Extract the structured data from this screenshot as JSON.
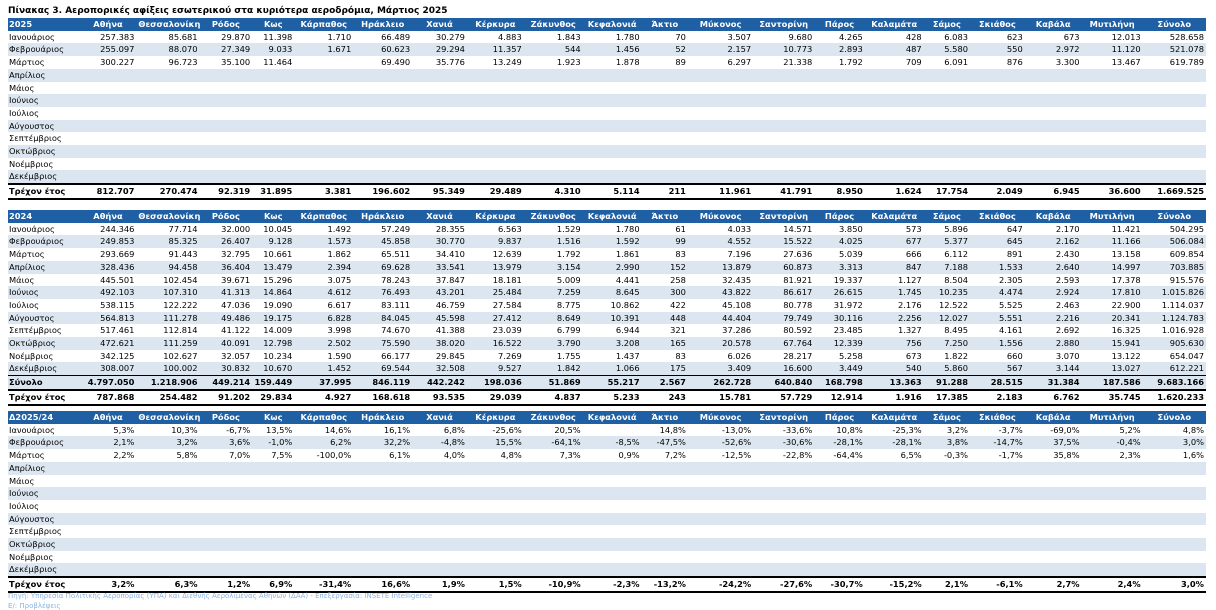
{
  "title": "Πίνακας 3. Αεροπορικές αφίξεις εσωτερικού στα κυριότερα αεροδρόμια, Μάρτιος 2025",
  "columns": [
    "Αθήνα",
    "Θεσσαλονίκη",
    "Ρόδος",
    "Κως",
    "Κάρπαθος",
    "Ηράκλειο",
    "Χανιά",
    "Κέρκυρα",
    "Ζάκυνθος",
    "Κεφαλονιά",
    "Άκτιο",
    "Μύκονος",
    "Σαντορίνη",
    "Πάρος",
    "Καλαμάτα",
    "Σάμος",
    "Σκιάθος",
    "Καβάλα",
    "Μυτιλήνη",
    "Σύνολο"
  ],
  "table2025": {
    "header": "2025",
    "rows": [
      {
        "label": "Ιανουάριος",
        "values": [
          "257.383",
          "85.681",
          "29.870",
          "11.398",
          "1.710",
          "66.489",
          "30.279",
          "4.883",
          "1.843",
          "1.780",
          "70",
          "3.507",
          "9.680",
          "4.265",
          "428",
          "6.083",
          "623",
          "673",
          "12.013",
          "528.658"
        ]
      },
      {
        "label": "Φεβρουάριος",
        "values": [
          "255.097",
          "88.070",
          "27.349",
          "9.033",
          "1.671",
          "60.623",
          "29.294",
          "11.357",
          "544",
          "1.456",
          "52",
          "2.157",
          "10.773",
          "2.893",
          "487",
          "5.580",
          "550",
          "2.972",
          "11.120",
          "521.078"
        ]
      },
      {
        "label": "Μάρτιος",
        "values": [
          "300.227",
          "96.723",
          "35.100",
          "11.464",
          "",
          "69.490",
          "35.776",
          "13.249",
          "1.923",
          "1.878",
          "89",
          "6.297",
          "21.338",
          "1.792",
          "709",
          "6.091",
          "876",
          "3.300",
          "13.467",
          "619.789"
        ]
      },
      {
        "label": "Απρίλιος",
        "values": []
      },
      {
        "label": "Μάιος",
        "values": []
      },
      {
        "label": "Ιούνιος",
        "values": []
      },
      {
        "label": "Ιούλιος",
        "values": []
      },
      {
        "label": "Αύγουστος",
        "values": []
      },
      {
        "label": "Σεπτέμβριος",
        "values": []
      },
      {
        "label": "Οκτώβριος",
        "values": []
      },
      {
        "label": "Νοέμβριος",
        "values": []
      },
      {
        "label": "Δεκέμβριος",
        "values": []
      }
    ],
    "total": {
      "label": "Τρέχον έτος",
      "values": [
        "812.707",
        "270.474",
        "92.319",
        "31.895",
        "3.381",
        "196.602",
        "95.349",
        "29.489",
        "4.310",
        "5.114",
        "211",
        "11.961",
        "41.791",
        "8.950",
        "1.624",
        "17.754",
        "2.049",
        "6.945",
        "36.600",
        "1.669.525"
      ]
    }
  },
  "table2024": {
    "header": "2024",
    "rows": [
      {
        "label": "Ιανουάριος",
        "values": [
          "244.346",
          "77.714",
          "32.000",
          "10.045",
          "1.492",
          "57.249",
          "28.355",
          "6.563",
          "1.529",
          "1.780",
          "61",
          "4.033",
          "14.571",
          "3.850",
          "573",
          "5.896",
          "647",
          "2.170",
          "11.421",
          "504.295"
        ]
      },
      {
        "label": "Φεβρουάριος",
        "values": [
          "249.853",
          "85.325",
          "26.407",
          "9.128",
          "1.573",
          "45.858",
          "30.770",
          "9.837",
          "1.516",
          "1.592",
          "99",
          "4.552",
          "15.522",
          "4.025",
          "677",
          "5.377",
          "645",
          "2.162",
          "11.166",
          "506.084"
        ]
      },
      {
        "label": "Μάρτιος",
        "values": [
          "293.669",
          "91.443",
          "32.795",
          "10.661",
          "1.862",
          "65.511",
          "34.410",
          "12.639",
          "1.792",
          "1.861",
          "83",
          "7.196",
          "27.636",
          "5.039",
          "666",
          "6.112",
          "891",
          "2.430",
          "13.158",
          "609.854"
        ]
      },
      {
        "label": "Απρίλιος",
        "values": [
          "328.436",
          "94.458",
          "36.404",
          "13.479",
          "2.394",
          "69.628",
          "33.541",
          "13.979",
          "3.154",
          "2.990",
          "152",
          "13.879",
          "60.873",
          "3.313",
          "847",
          "7.188",
          "1.533",
          "2.640",
          "14.997",
          "703.885"
        ]
      },
      {
        "label": "Μάιος",
        "values": [
          "445.501",
          "102.454",
          "39.671",
          "15.296",
          "3.075",
          "78.243",
          "37.847",
          "18.181",
          "5.009",
          "4.441",
          "258",
          "32.435",
          "81.921",
          "19.337",
          "1.127",
          "8.504",
          "2.305",
          "2.593",
          "17.378",
          "915.576"
        ]
      },
      {
        "label": "Ιούνιος",
        "values": [
          "492.103",
          "107.310",
          "41.313",
          "14.864",
          "4.612",
          "76.493",
          "43.201",
          "25.484",
          "7.259",
          "8.645",
          "300",
          "43.822",
          "86.617",
          "26.615",
          "1.745",
          "10.235",
          "4.474",
          "2.924",
          "17.810",
          "1.015.826"
        ]
      },
      {
        "label": "Ιούλιος",
        "values": [
          "538.115",
          "122.222",
          "47.036",
          "19.090",
          "6.617",
          "83.111",
          "46.759",
          "27.584",
          "8.775",
          "10.862",
          "422",
          "45.108",
          "80.778",
          "31.972",
          "2.176",
          "12.522",
          "5.525",
          "2.463",
          "22.900",
          "1.114.037"
        ]
      },
      {
        "label": "Αύγουστος",
        "values": [
          "564.813",
          "111.278",
          "49.486",
          "19.175",
          "6.828",
          "84.045",
          "45.598",
          "27.412",
          "8.649",
          "10.391",
          "448",
          "44.404",
          "79.749",
          "30.116",
          "2.256",
          "12.027",
          "5.551",
          "2.216",
          "20.341",
          "1.124.783"
        ]
      },
      {
        "label": "Σεπτέμβριος",
        "values": [
          "517.461",
          "112.814",
          "41.122",
          "14.009",
          "3.998",
          "74.670",
          "41.388",
          "23.039",
          "6.799",
          "6.944",
          "321",
          "37.286",
          "80.592",
          "23.485",
          "1.327",
          "8.495",
          "4.161",
          "2.692",
          "16.325",
          "1.016.928"
        ]
      },
      {
        "label": "Οκτώβριος",
        "values": [
          "472.621",
          "111.259",
          "40.091",
          "12.798",
          "2.502",
          "75.590",
          "38.020",
          "16.522",
          "3.790",
          "3.208",
          "165",
          "20.578",
          "67.764",
          "12.339",
          "756",
          "7.250",
          "1.556",
          "2.880",
          "15.941",
          "905.630"
        ]
      },
      {
        "label": "Νοέμβριος",
        "values": [
          "342.125",
          "102.627",
          "32.057",
          "10.234",
          "1.590",
          "66.177",
          "29.845",
          "7.269",
          "1.755",
          "1.437",
          "83",
          "6.026",
          "28.217",
          "5.258",
          "673",
          "1.822",
          "660",
          "3.070",
          "13.122",
          "654.047"
        ]
      },
      {
        "label": "Δεκέμβριος",
        "values": [
          "308.007",
          "100.002",
          "30.832",
          "10.670",
          "1.452",
          "69.544",
          "32.508",
          "9.527",
          "1.842",
          "1.066",
          "175",
          "3.409",
          "16.600",
          "3.449",
          "540",
          "5.860",
          "567",
          "3.144",
          "13.027",
          "612.221"
        ]
      }
    ],
    "sum": {
      "label": "Σύνολο",
      "values": [
        "4.797.050",
        "1.218.906",
        "449.214",
        "159.449",
        "37.995",
        "846.119",
        "442.242",
        "198.036",
        "51.869",
        "55.217",
        "2.567",
        "262.728",
        "640.840",
        "168.798",
        "13.363",
        "91.288",
        "28.515",
        "31.384",
        "187.586",
        "9.683.166"
      ]
    },
    "total": {
      "label": "Τρέχον έτος",
      "values": [
        "787.868",
        "254.482",
        "91.202",
        "29.834",
        "4.927",
        "168.618",
        "93.535",
        "29.039",
        "4.837",
        "5.233",
        "243",
        "15.781",
        "57.729",
        "12.914",
        "1.916",
        "17.385",
        "2.183",
        "6.762",
        "35.745",
        "1.620.233"
      ]
    }
  },
  "tableDelta": {
    "header": "Δ2025/24",
    "rows": [
      {
        "label": "Ιανουάριος",
        "values": [
          "5,3%",
          "10,3%",
          "-6,7%",
          "13,5%",
          "14,6%",
          "16,1%",
          "6,8%",
          "-25,6%",
          "20,5%",
          "",
          "14,8%",
          "-13,0%",
          "-33,6%",
          "10,8%",
          "-25,3%",
          "3,2%",
          "-3,7%",
          "-69,0%",
          "5,2%",
          "4,8%"
        ]
      },
      {
        "label": "Φεβρουάριος",
        "values": [
          "2,1%",
          "3,2%",
          "3,6%",
          "-1,0%",
          "6,2%",
          "32,2%",
          "-4,8%",
          "15,5%",
          "-64,1%",
          "-8,5%",
          "-47,5%",
          "-52,6%",
          "-30,6%",
          "-28,1%",
          "-28,1%",
          "3,8%",
          "-14,7%",
          "37,5%",
          "-0,4%",
          "3,0%"
        ]
      },
      {
        "label": "Μάρτιος",
        "values": [
          "2,2%",
          "5,8%",
          "7,0%",
          "7,5%",
          "-100,0%",
          "6,1%",
          "4,0%",
          "4,8%",
          "7,3%",
          "0,9%",
          "7,2%",
          "-12,5%",
          "-22,8%",
          "-64,4%",
          "6,5%",
          "-0,3%",
          "-1,7%",
          "35,8%",
          "2,3%",
          "1,6%"
        ]
      },
      {
        "label": "Απρίλιος",
        "values": []
      },
      {
        "label": "Μάιος",
        "values": []
      },
      {
        "label": "Ιούνιος",
        "values": []
      },
      {
        "label": "Ιούλιος",
        "values": []
      },
      {
        "label": "Αύγουστος",
        "values": []
      },
      {
        "label": "Σεπτέμβριος",
        "values": []
      },
      {
        "label": "Οκτώβριος",
        "values": []
      },
      {
        "label": "Νοέμβριος",
        "values": []
      },
      {
        "label": "Δεκέμβριος",
        "values": []
      }
    ],
    "total": {
      "label": "Τρέχον έτος",
      "values": [
        "3,2%",
        "6,3%",
        "1,2%",
        "6,9%",
        "-31,4%",
        "16,6%",
        "1,9%",
        "1,5%",
        "-10,9%",
        "-2,3%",
        "-13,2%",
        "-24,2%",
        "-27,6%",
        "-30,7%",
        "-15,2%",
        "2,1%",
        "-6,1%",
        "2,7%",
        "2,4%",
        "3,0%"
      ]
    }
  },
  "source": "Πηγή: Υπηρεσία Πολιτικής Αεροπορίας (ΥΠΑ) και Διεθνής Αερολιμένας Αθηνών (ΔΑΑ) - Επεξεργασία: INSETE Intelligence",
  "note": "Ε/: Προβλέψεις"
}
